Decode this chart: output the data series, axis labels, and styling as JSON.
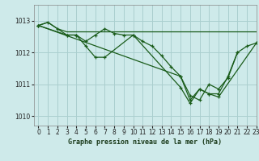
{
  "title": "Graphe pression niveau de la mer (hPa)",
  "background_color": "#ceeaea",
  "line_color": "#1a5c1a",
  "grid_color": "#aacfcf",
  "xlim": [
    -0.5,
    23
  ],
  "ylim": [
    1009.7,
    1013.5
  ],
  "yticks": [
    1010,
    1011,
    1012,
    1013
  ],
  "xticks": [
    0,
    1,
    2,
    3,
    4,
    5,
    6,
    7,
    8,
    9,
    10,
    11,
    12,
    13,
    14,
    15,
    16,
    17,
    18,
    19,
    20,
    21,
    22,
    23
  ],
  "series": [
    {
      "x": [
        0,
        1,
        2,
        3,
        4,
        5,
        6,
        7,
        8,
        9,
        10,
        11,
        12,
        13,
        14,
        15,
        16,
        17,
        18,
        19,
        20,
        21,
        22,
        23
      ],
      "y": [
        1012.85,
        1012.95,
        1012.75,
        1012.65,
        1012.65,
        1012.65,
        1012.65,
        1012.65,
        1012.65,
        1012.65,
        1012.65,
        1012.65,
        1012.65,
        1012.65,
        1012.65,
        1012.65,
        1012.65,
        1012.65,
        1012.65,
        1012.65,
        1012.65,
        1012.65,
        1012.65,
        1012.65
      ],
      "markers": false
    },
    {
      "x": [
        0,
        1,
        2,
        3,
        4,
        5,
        6,
        7,
        8,
        9,
        10,
        11,
        12,
        13,
        14,
        15,
        16,
        17,
        18,
        19,
        20,
        21,
        22,
        23
      ],
      "y": [
        1012.85,
        1012.95,
        1012.75,
        1012.55,
        1012.55,
        1012.35,
        1012.55,
        1012.75,
        1012.6,
        1012.55,
        1012.55,
        1012.35,
        1012.2,
        1011.9,
        1011.55,
        1011.25,
        1010.65,
        1010.5,
        1011.0,
        1010.85,
        1011.2,
        1012.0,
        1012.2,
        1012.3
      ],
      "markers": true
    },
    {
      "x": [
        0,
        3,
        4,
        5,
        6,
        7,
        10,
        15,
        16,
        17,
        18,
        19,
        23
      ],
      "y": [
        1012.85,
        1012.55,
        1012.55,
        1012.2,
        1011.85,
        1011.85,
        1012.55,
        1010.9,
        1010.4,
        1010.85,
        1010.7,
        1010.6,
        1012.3
      ],
      "markers": true
    },
    {
      "x": [
        0,
        15,
        16,
        17,
        18,
        19,
        20,
        21
      ],
      "y": [
        1012.85,
        1011.25,
        1010.5,
        1010.85,
        1010.7,
        1010.7,
        1011.25,
        1012.0
      ],
      "markers": true
    }
  ]
}
